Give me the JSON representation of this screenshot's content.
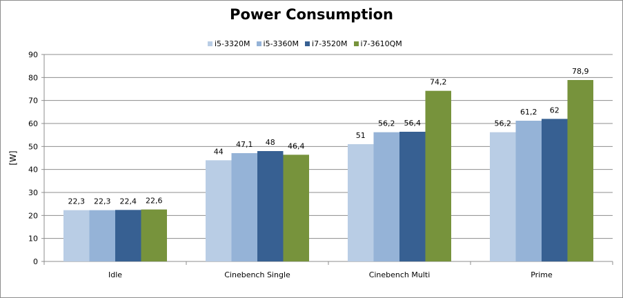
{
  "chart_data": {
    "type": "bar",
    "title": "Power Consumption",
    "ylabel": "[W]",
    "xlabel": "",
    "categories": [
      "Idle",
      "Cinebench Single",
      "Cinebench Multi",
      "Prime"
    ],
    "series": [
      {
        "name": "i5-3320M",
        "color": "#b9cde5",
        "values": [
          22.3,
          44,
          51,
          56.2
        ],
        "labels": [
          "22,3",
          "44",
          "51",
          "56,2"
        ]
      },
      {
        "name": "i5-3360M",
        "color": "#95b3d7",
        "values": [
          22.3,
          47.1,
          56.2,
          61.2
        ],
        "labels": [
          "22,3",
          "47,1",
          "56,2",
          "61,2"
        ]
      },
      {
        "name": "i7-3520M",
        "color": "#376092",
        "values": [
          22.4,
          48,
          56.4,
          62
        ],
        "labels": [
          "22,4",
          "48",
          "56,4",
          "62"
        ]
      },
      {
        "name": "i7-3610QM",
        "color": "#77933c",
        "values": [
          22.6,
          46.4,
          74.2,
          78.9
        ],
        "labels": [
          "22,6",
          "46,4",
          "74,2",
          "78,9"
        ]
      }
    ],
    "ylim": [
      0,
      90
    ],
    "yticks": [
      0,
      10,
      20,
      30,
      40,
      50,
      60,
      70,
      80,
      90
    ],
    "grid": true,
    "legend_position": "top-center"
  }
}
